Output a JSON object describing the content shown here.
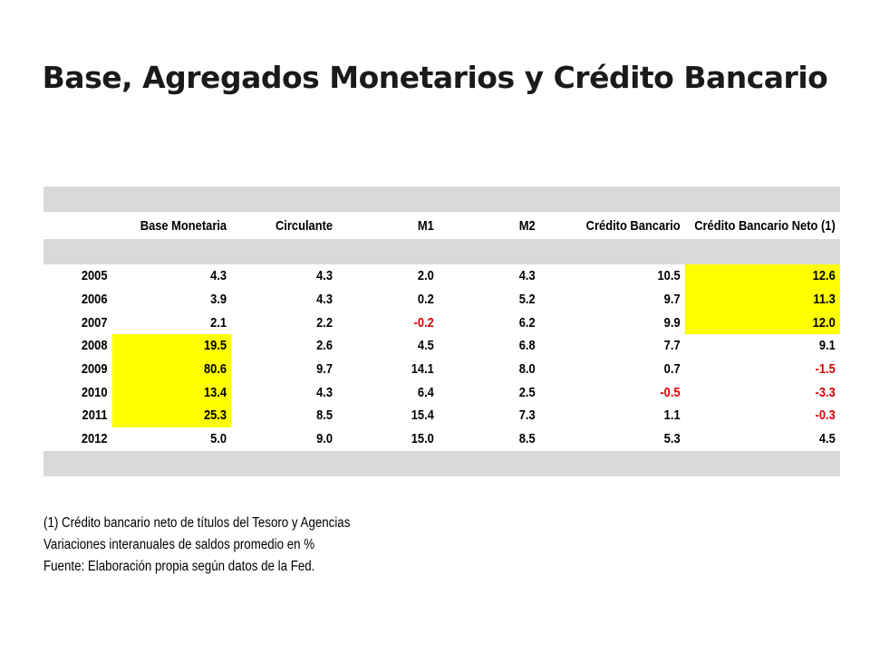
{
  "title": "Base, Agregados Monetarios y Crédito Bancario",
  "table": {
    "columns": [
      "",
      "Base Monetaria",
      "Circulante",
      "M1",
      "M2",
      "Crédito Bancario",
      "Crédito Bancario Neto (1)"
    ],
    "rows": [
      {
        "year": "2005",
        "values": [
          "4.3",
          "4.3",
          "2.0",
          "4.3",
          "10.5",
          "12.6"
        ]
      },
      {
        "year": "2006",
        "values": [
          "3.9",
          "4.3",
          "0.2",
          "5.2",
          "9.7",
          "11.3"
        ]
      },
      {
        "year": "2007",
        "values": [
          "2.1",
          "2.2",
          "-0.2",
          "6.2",
          "9.9",
          "12.0"
        ]
      },
      {
        "year": "2008",
        "values": [
          "19.5",
          "2.6",
          "4.5",
          "6.8",
          "7.7",
          "9.1"
        ]
      },
      {
        "year": "2009",
        "values": [
          "80.6",
          "9.7",
          "14.1",
          "8.0",
          "0.7",
          "-1.5"
        ]
      },
      {
        "year": "2010",
        "values": [
          "13.4",
          "4.3",
          "6.4",
          "2.5",
          "-0.5",
          "-3.3"
        ]
      },
      {
        "year": "2011",
        "values": [
          "25.3",
          "8.5",
          "15.4",
          "7.3",
          "1.1",
          "-0.3"
        ]
      },
      {
        "year": "2012",
        "values": [
          "5.0",
          "9.0",
          "15.0",
          "8.5",
          "5.3",
          "4.5"
        ]
      }
    ],
    "highlight_color": "#ffff00",
    "negative_color": "#e00000",
    "band_color": "#d9d9d9"
  },
  "notes": [
    "(1) Crédito bancario neto de títulos del Tesoro y Agencias",
    "Variaciones interanuales de saldos promedio en %",
    "Fuente: Elaboración propia según datos de la Fed."
  ]
}
